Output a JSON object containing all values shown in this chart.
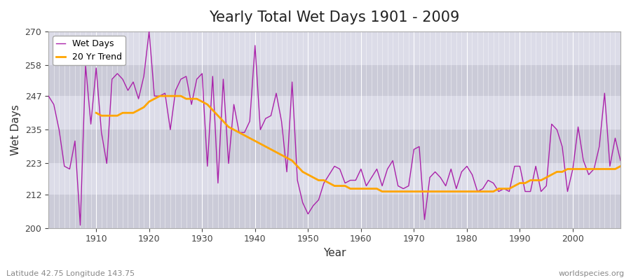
{
  "title": "Yearly Total Wet Days 1901 - 2009",
  "xlabel": "Year",
  "ylabel": "Wet Days",
  "subtitle_left": "Latitude 42.75 Longitude 143.75",
  "subtitle_right": "worldspecies.org",
  "legend_wet": "Wet Days",
  "legend_trend": "20 Yr Trend",
  "wet_color": "#AA22AA",
  "trend_color": "#FFA500",
  "bg_color": "#DCDCE8",
  "band_color_dark": "#CBCBD8",
  "band_color_light": "#DCDCE8",
  "ylim": [
    200,
    270
  ],
  "yticks": [
    200,
    212,
    223,
    235,
    247,
    258,
    270
  ],
  "xlim": [
    1901,
    2009
  ],
  "years": [
    1901,
    1902,
    1903,
    1904,
    1905,
    1906,
    1907,
    1908,
    1909,
    1910,
    1911,
    1912,
    1913,
    1914,
    1915,
    1916,
    1917,
    1918,
    1919,
    1920,
    1921,
    1922,
    1923,
    1924,
    1925,
    1926,
    1927,
    1928,
    1929,
    1930,
    1931,
    1932,
    1933,
    1934,
    1935,
    1936,
    1937,
    1938,
    1939,
    1940,
    1941,
    1942,
    1943,
    1944,
    1945,
    1946,
    1947,
    1948,
    1949,
    1950,
    1951,
    1952,
    1953,
    1954,
    1955,
    1956,
    1957,
    1958,
    1959,
    1960,
    1961,
    1962,
    1963,
    1964,
    1965,
    1966,
    1967,
    1968,
    1969,
    1970,
    1971,
    1972,
    1973,
    1974,
    1975,
    1976,
    1977,
    1978,
    1979,
    1980,
    1981,
    1982,
    1983,
    1984,
    1985,
    1986,
    1987,
    1988,
    1989,
    1990,
    1991,
    1992,
    1993,
    1994,
    1995,
    1996,
    1997,
    1998,
    1999,
    2000,
    2001,
    2002,
    2003,
    2004,
    2005,
    2006,
    2007,
    2008,
    2009
  ],
  "wet_days": [
    247,
    244,
    235,
    222,
    221,
    231,
    201,
    258,
    237,
    257,
    234,
    223,
    253,
    255,
    253,
    249,
    252,
    246,
    254,
    270,
    247,
    247,
    248,
    235,
    249,
    253,
    254,
    244,
    253,
    255,
    222,
    254,
    216,
    253,
    223,
    244,
    234,
    234,
    238,
    265,
    235,
    239,
    240,
    248,
    238,
    220,
    252,
    217,
    209,
    205,
    208,
    210,
    216,
    219,
    222,
    221,
    216,
    217,
    217,
    221,
    215,
    218,
    221,
    215,
    221,
    224,
    215,
    214,
    215,
    228,
    229,
    203,
    218,
    220,
    218,
    215,
    221,
    214,
    220,
    222,
    219,
    213,
    214,
    217,
    216,
    213,
    214,
    213,
    222,
    222,
    213,
    213,
    222,
    213,
    215,
    237,
    235,
    229,
    213,
    221,
    236,
    224,
    219,
    221,
    229,
    248,
    222,
    232,
    224
  ],
  "trend_years": [
    1910,
    1911,
    1912,
    1913,
    1914,
    1915,
    1916,
    1917,
    1918,
    1919,
    1920,
    1921,
    1922,
    1923,
    1924,
    1925,
    1926,
    1927,
    1928,
    1929,
    1930,
    1931,
    1932,
    1933,
    1934,
    1935,
    1936,
    1937,
    1938,
    1939,
    1940,
    1941,
    1942,
    1943,
    1944,
    1945,
    1946,
    1947,
    1948,
    1949,
    1950,
    1951,
    1952,
    1953,
    1954,
    1955,
    1956,
    1957,
    1958,
    1959,
    1960,
    1961,
    1962,
    1963,
    1964,
    1965,
    1966,
    1967,
    1968,
    1969,
    1970,
    1971,
    1972,
    1973,
    1974,
    1975,
    1976,
    1977,
    1978,
    1979,
    1980,
    1981,
    1982,
    1983,
    1984,
    1985,
    1986,
    1987,
    1988,
    1989,
    1990,
    1991,
    1992,
    1993,
    1994,
    1995,
    1996,
    1997,
    1998,
    1999,
    2000,
    2001,
    2002,
    2003,
    2004,
    2005,
    2006,
    2007,
    2008,
    2009
  ],
  "trend_days": [
    241,
    240,
    240,
    240,
    240,
    241,
    241,
    241,
    242,
    243,
    245,
    246,
    247,
    247,
    247,
    247,
    247,
    246,
    246,
    246,
    245,
    244,
    242,
    240,
    238,
    236,
    235,
    234,
    233,
    232,
    231,
    230,
    229,
    228,
    227,
    226,
    225,
    224,
    222,
    220,
    219,
    218,
    217,
    217,
    216,
    215,
    215,
    215,
    214,
    214,
    214,
    214,
    214,
    214,
    213,
    213,
    213,
    213,
    213,
    213,
    213,
    213,
    213,
    213,
    213,
    213,
    213,
    213,
    213,
    213,
    213,
    213,
    213,
    213,
    213,
    213,
    214,
    214,
    214,
    215,
    216,
    216,
    217,
    217,
    217,
    218,
    219,
    220,
    220,
    221,
    221,
    221,
    221,
    221,
    221,
    221,
    221,
    221,
    221,
    222
  ],
  "band_boundaries": [
    200,
    212,
    223,
    235,
    247,
    258,
    270
  ]
}
